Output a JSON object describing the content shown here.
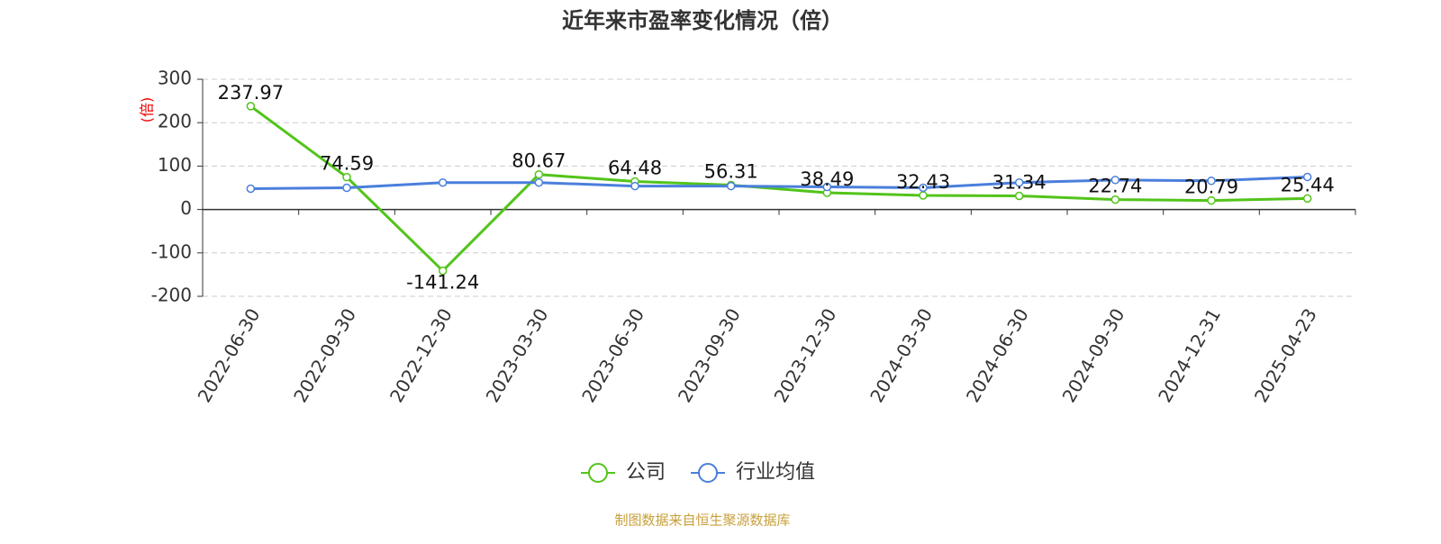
{
  "chart_data": {
    "type": "line",
    "title": "近年来市盈率变化情况（倍）",
    "y_label": "(倍)",
    "source": "制图数据来自恒生聚源数据库",
    "categories": [
      "2022-06-30",
      "2022-09-30",
      "2022-12-30",
      "2023-03-30",
      "2023-06-30",
      "2023-09-30",
      "2023-12-30",
      "2024-03-30",
      "2024-06-30",
      "2024-09-30",
      "2024-12-31",
      "2025-04-23"
    ],
    "series": [
      {
        "name": "公司",
        "color": "#52c41a",
        "values": [
          237.97,
          74.59,
          -141.24,
          80.67,
          64.48,
          56.31,
          38.49,
          32.43,
          31.34,
          22.74,
          20.79,
          25.44
        ]
      },
      {
        "name": "行业均值",
        "color": "#4a7fdc",
        "values": [
          48,
          50,
          62,
          62,
          54,
          54,
          52,
          50,
          62,
          68,
          66,
          75
        ]
      }
    ],
    "ylim": [
      -200,
      300
    ],
    "yticks": [
      -200,
      -100,
      0,
      100,
      200,
      300
    ],
    "grid": true,
    "legend": "bottom"
  }
}
